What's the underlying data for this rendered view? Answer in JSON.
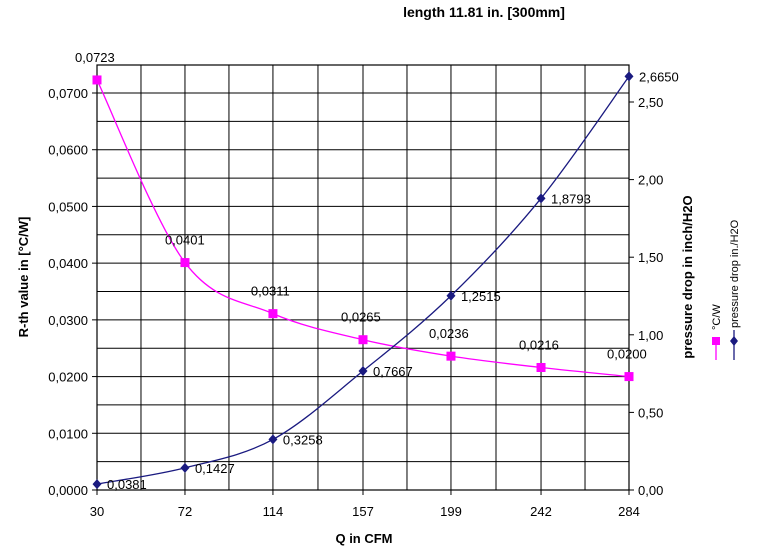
{
  "chart_data": {
    "type": "line",
    "title": "length 11.81 in. [300mm]",
    "xlabel": "Q in CFM",
    "ylabel_left": "R-th value in [°C/W]",
    "ylabel_right": "pressure drop in inch/H2O",
    "categories": [
      "30",
      "72",
      "114",
      "157",
      "199",
      "242",
      "284"
    ],
    "x_values": [
      30,
      72,
      114,
      157,
      199,
      242,
      284
    ],
    "xlim": [
      30,
      284
    ],
    "ylim_left": [
      0,
      0.07
    ],
    "ylim_right": [
      0,
      2.6
    ],
    "yticks_left": [
      "0,0000",
      "0,0100",
      "0,0200",
      "0,0300",
      "0,0400",
      "0,0500",
      "0,0600",
      "0,0700"
    ],
    "yticks_right": [
      "0,00",
      "0,50",
      "1,00",
      "1,50",
      "2,00",
      "2,50"
    ],
    "grid": true,
    "legend_position": "right",
    "series": [
      {
        "name": "°C/W",
        "axis": "left",
        "color": "#ff00ff",
        "marker": "square",
        "values": [
          0.0723,
          0.0401,
          0.0311,
          0.0265,
          0.0236,
          0.0216,
          0.02
        ],
        "labels": [
          "0,0723",
          "0,0401",
          "0,0311",
          "0,0265",
          "0,0236",
          "0,0216",
          "0,0200"
        ]
      },
      {
        "name": "pressure drop in./H2O",
        "axis": "right",
        "color": "#1a1a80",
        "marker": "diamond",
        "values": [
          0.0381,
          0.1427,
          0.3258,
          0.7667,
          1.2515,
          1.8793,
          2.665
        ],
        "labels": [
          "0,0381",
          "0,1427",
          "0,3258",
          "0,7667",
          "1,2515",
          "1,8793",
          "2,6650"
        ]
      }
    ]
  }
}
